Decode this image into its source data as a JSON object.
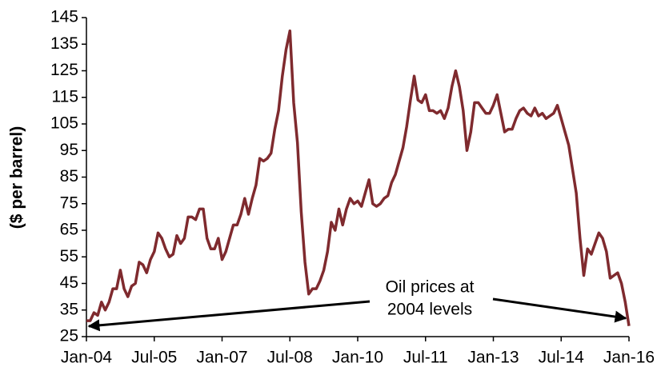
{
  "chart_data": {
    "type": "line",
    "ylabel": "($ per barrel)",
    "annotation": [
      "Oil prices at",
      "2004 levels"
    ],
    "x": [
      "Jan-04",
      "Feb-04",
      "Mar-04",
      "Apr-04",
      "May-04",
      "Jun-04",
      "Jul-04",
      "Aug-04",
      "Sep-04",
      "Oct-04",
      "Nov-04",
      "Dec-04",
      "Jan-05",
      "Feb-05",
      "Mar-05",
      "Apr-05",
      "May-05",
      "Jun-05",
      "Jul-05",
      "Aug-05",
      "Sep-05",
      "Oct-05",
      "Nov-05",
      "Dec-05",
      "Jan-06",
      "Feb-06",
      "Mar-06",
      "Apr-06",
      "May-06",
      "Jun-06",
      "Jul-06",
      "Aug-06",
      "Sep-06",
      "Oct-06",
      "Nov-06",
      "Dec-06",
      "Jan-07",
      "Feb-07",
      "Mar-07",
      "Apr-07",
      "May-07",
      "Jun-07",
      "Jul-07",
      "Aug-07",
      "Sep-07",
      "Oct-07",
      "Nov-07",
      "Dec-07",
      "Jan-08",
      "Feb-08",
      "Mar-08",
      "Apr-08",
      "May-08",
      "Jun-08",
      "Jul-08",
      "Aug-08",
      "Sep-08",
      "Oct-08",
      "Nov-08",
      "Dec-08",
      "Jan-09",
      "Feb-09",
      "Mar-09",
      "Apr-09",
      "May-09",
      "Jun-09",
      "Jul-09",
      "Aug-09",
      "Sep-09",
      "Oct-09",
      "Nov-09",
      "Dec-09",
      "Jan-10",
      "Feb-10",
      "Mar-10",
      "Apr-10",
      "May-10",
      "Jun-10",
      "Jul-10",
      "Aug-10",
      "Sep-10",
      "Oct-10",
      "Nov-10",
      "Dec-10",
      "Jan-11",
      "Feb-11",
      "Mar-11",
      "Apr-11",
      "May-11",
      "Jun-11",
      "Jul-11",
      "Aug-11",
      "Sep-11",
      "Oct-11",
      "Nov-11",
      "Dec-11",
      "Jan-12",
      "Feb-12",
      "Mar-12",
      "Apr-12",
      "May-12",
      "Jun-12",
      "Jul-12",
      "Aug-12",
      "Sep-12",
      "Oct-12",
      "Nov-12",
      "Dec-12",
      "Jan-13",
      "Feb-13",
      "Mar-13",
      "Apr-13",
      "May-13",
      "Jun-13",
      "Jul-13",
      "Aug-13",
      "Sep-13",
      "Oct-13",
      "Nov-13",
      "Dec-13",
      "Jan-14",
      "Feb-14",
      "Mar-14",
      "Apr-14",
      "May-14",
      "Jun-14",
      "Jul-14",
      "Aug-14",
      "Sep-14",
      "Oct-14",
      "Nov-14",
      "Dec-14",
      "Jan-15",
      "Feb-15",
      "Mar-15",
      "Apr-15",
      "May-15",
      "Jun-15",
      "Jul-15",
      "Aug-15",
      "Sep-15",
      "Oct-15",
      "Nov-15",
      "Dec-15",
      "Jan-16"
    ],
    "series": [
      {
        "color": "#7f2a2e",
        "values": [
          31,
          31,
          34,
          33,
          38,
          35,
          38,
          43,
          43,
          50,
          43,
          40,
          44,
          45,
          53,
          52,
          49,
          54,
          57,
          64,
          62,
          58,
          55,
          56,
          63,
          60,
          62,
          70,
          70,
          69,
          73,
          73,
          62,
          58,
          58,
          62,
          54,
          57,
          62,
          67,
          67,
          71,
          77,
          71,
          77,
          82,
          92,
          91,
          92,
          94,
          103,
          110,
          123,
          133,
          140,
          113,
          98,
          72,
          53,
          41,
          43,
          43,
          46,
          50,
          57,
          68,
          65,
          73,
          67,
          73,
          77,
          75,
          76,
          74,
          79,
          84,
          75,
          74,
          75,
          77,
          78,
          83,
          86,
          91,
          96,
          104,
          114,
          123,
          114,
          113,
          116,
          110,
          110,
          109,
          110,
          107,
          111,
          119,
          125,
          119,
          110,
          95,
          102,
          113,
          113,
          111,
          109,
          109,
          112,
          116,
          109,
          102,
          103,
          103,
          107,
          110,
          111,
          109,
          108,
          111,
          108,
          109,
          107,
          108,
          109,
          112,
          107,
          102,
          97,
          88,
          79,
          62,
          48,
          58,
          56,
          60,
          64,
          62,
          57,
          47,
          48,
          49,
          45,
          38,
          29
        ]
      }
    ],
    "xticks": [
      "Jan-04",
      "Jul-05",
      "Jan-07",
      "Jul-08",
      "Jan-10",
      "Jul-11",
      "Jan-13",
      "Jul-14",
      "Jan-16"
    ],
    "ylim": [
      25,
      145
    ],
    "yticks": [
      25,
      35,
      45,
      55,
      65,
      75,
      85,
      95,
      105,
      115,
      125,
      135,
      145
    ]
  }
}
